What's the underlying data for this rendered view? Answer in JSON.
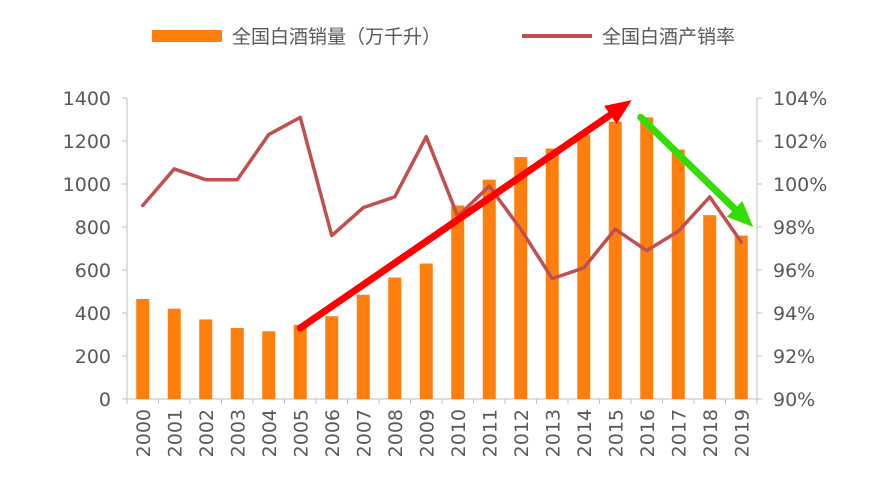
{
  "legend": {
    "bar_label": "全国白酒销量（万千升）",
    "line_label": "全国白酒产销率"
  },
  "colors": {
    "bar": "#FF7F0E",
    "line": "#C0504D",
    "up_arrow": "#FF0000",
    "down_arrow": "#33DD00"
  },
  "chart_data": {
    "type": "bar",
    "categories": [
      "2000",
      "2001",
      "2002",
      "2003",
      "2004",
      "2005",
      "2006",
      "2007",
      "2008",
      "2009",
      "2010",
      "2011",
      "2012",
      "2013",
      "2014",
      "2015",
      "2016",
      "2017",
      "2018",
      "2019"
    ],
    "series": [
      {
        "name": "全国白酒销量（万千升）",
        "type": "bar",
        "axis": "left",
        "values": [
          465,
          420,
          370,
          330,
          315,
          345,
          385,
          485,
          565,
          630,
          900,
          1020,
          1125,
          1165,
          1230,
          1290,
          1310,
          1160,
          855,
          760
        ]
      },
      {
        "name": "全国白酒产销率",
        "type": "line",
        "axis": "right",
        "values": [
          99.0,
          100.7,
          100.2,
          100.2,
          102.3,
          103.1,
          97.6,
          98.9,
          99.4,
          102.2,
          98.5,
          99.9,
          97.9,
          95.6,
          96.1,
          97.9,
          96.9,
          97.8,
          99.4,
          97.3
        ]
      }
    ],
    "ylim_left": [
      0,
      1400
    ],
    "yticks_left": [
      "0",
      "200",
      "400",
      "600",
      "800",
      "1000",
      "1200",
      "1400"
    ],
    "ylim_right": [
      90,
      104
    ],
    "yticks_right": [
      "90%",
      "92%",
      "94%",
      "96%",
      "98%",
      "100%",
      "102%",
      "104%"
    ],
    "annotations": [
      {
        "type": "arrow",
        "color": "red",
        "from": [
          "2005",
          330
        ],
        "to": [
          "2016",
          1390
        ]
      },
      {
        "type": "arrow",
        "color": "green",
        "from": [
          "2016",
          1310
        ],
        "to": [
          "2019",
          800
        ]
      }
    ],
    "grid": false,
    "legend_position": "top"
  }
}
